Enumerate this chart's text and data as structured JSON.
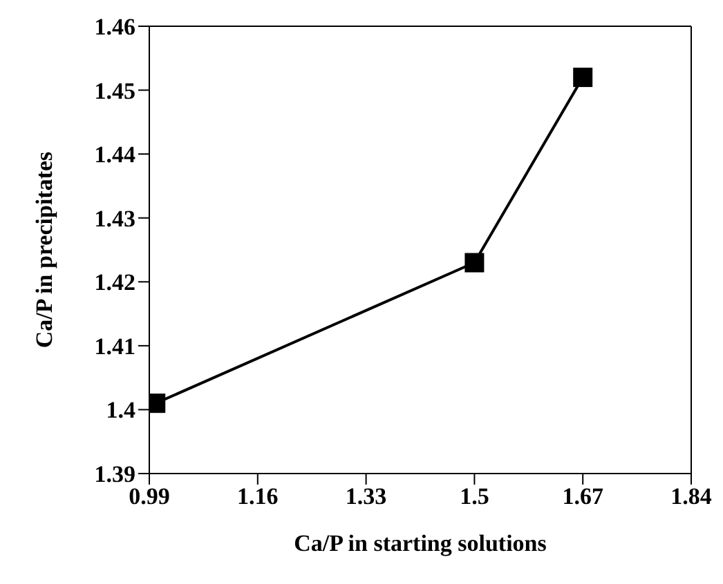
{
  "chart_data": {
    "type": "line",
    "xlabel": "Ca/P in starting solutions",
    "ylabel": "Ca/P in precipitates",
    "x": [
      1.0,
      1.5,
      1.67
    ],
    "series": [
      {
        "color": "#000000",
        "values": [
          1.401,
          1.423,
          1.452
        ]
      }
    ],
    "xlim": [
      0.99,
      1.84
    ],
    "xticks": [
      0.99,
      1.16,
      1.33,
      1.5,
      1.67,
      1.84
    ],
    "ylim": [
      1.39,
      1.46
    ],
    "yticks": [
      1.39,
      1.4,
      1.41,
      1.42,
      1.43,
      1.44,
      1.45,
      1.46
    ],
    "grid": false,
    "legend": false,
    "marker": "square",
    "line_style": "solid"
  }
}
